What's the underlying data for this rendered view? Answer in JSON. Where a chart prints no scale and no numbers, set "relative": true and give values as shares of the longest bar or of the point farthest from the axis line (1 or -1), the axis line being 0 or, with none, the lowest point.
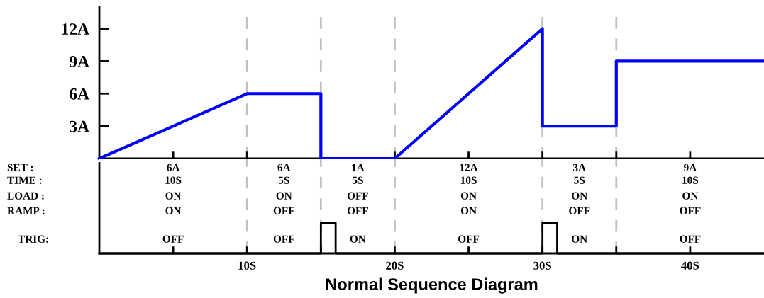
{
  "chart_data": [
    {
      "type": "line",
      "ylabel": null,
      "x": [
        0,
        10,
        15,
        15,
        20,
        30,
        30,
        35,
        35,
        45
      ],
      "series": [
        {
          "color": "#0000ff",
          "values": [
            0,
            6,
            6,
            0,
            0,
            12,
            3,
            3,
            9,
            9
          ]
        }
      ],
      "xlim": [
        0,
        45
      ],
      "ylim": [
        0,
        14
      ],
      "xticks": [
        {
          "value": 5,
          "label": null
        },
        {
          "value": 10,
          "label": null
        },
        {
          "value": 15,
          "label": null
        },
        {
          "value": 20,
          "label": null
        },
        {
          "value": 25,
          "label": null
        },
        {
          "value": 30,
          "label": null
        },
        {
          "value": 35,
          "label": null
        },
        {
          "value": 40,
          "label": null
        }
      ],
      "yticks": [
        {
          "value": 3,
          "label": "3A"
        },
        {
          "value": 6,
          "label": "6A"
        },
        {
          "value": 9,
          "label": "9A"
        },
        {
          "value": 12,
          "label": "12A"
        }
      ],
      "tick_labels": "y",
      "grid": false,
      "legend": false,
      "marker": "none",
      "line_style": "solid",
      "ref_lines": [
        {
          "axis": "x",
          "value": 10,
          "color": "#c0c0c0",
          "line_style": "dashed"
        },
        {
          "axis": "x",
          "value": 15,
          "color": "#c0c0c0",
          "line_style": "dashed"
        },
        {
          "axis": "x",
          "value": 20,
          "color": "#c0c0c0",
          "line_style": "dashed"
        },
        {
          "axis": "x",
          "value": 30,
          "color": "#c0c0c0",
          "line_style": "dashed"
        },
        {
          "axis": "x",
          "value": 35,
          "color": "#c0c0c0",
          "line_style": "dashed"
        }
      ]
    },
    {
      "type": "line",
      "relative": true,
      "xlabel": "Normal Sequence Diagram",
      "x": [
        0,
        15,
        15,
        16,
        16,
        30,
        30,
        31,
        31,
        45
      ],
      "series": [
        {
          "color": "#000000",
          "values": [
            0,
            0,
            1,
            1,
            0,
            0,
            1,
            1,
            0,
            0
          ]
        }
      ],
      "xlim": [
        0,
        45
      ],
      "xticks": [
        {
          "value": 5,
          "label": null
        },
        {
          "value": 10,
          "label": "10S"
        },
        {
          "value": 15,
          "label": null
        },
        {
          "value": 20,
          "label": "20S"
        },
        {
          "value": 25,
          "label": null
        },
        {
          "value": 30,
          "label": "30S"
        },
        {
          "value": 35,
          "label": null
        },
        {
          "value": 40,
          "label": "40S"
        }
      ],
      "tick_labels": "x",
      "grid": false,
      "legend": false,
      "marker": "none",
      "line_style": "solid",
      "ref_lines": [
        {
          "axis": "x",
          "value": 10,
          "color": "#c0c0c0",
          "line_style": "dashed"
        },
        {
          "axis": "x",
          "value": 15,
          "color": "#c0c0c0",
          "line_style": "dashed"
        },
        {
          "axis": "x",
          "value": 20,
          "color": "#c0c0c0",
          "line_style": "dashed"
        },
        {
          "axis": "x",
          "value": 30,
          "color": "#c0c0c0",
          "line_style": "dashed"
        },
        {
          "axis": "x",
          "value": 35,
          "color": "#c0c0c0",
          "line_style": "dashed"
        }
      ],
      "annotations": [
        "SET :",
        "TIME :",
        "LOAD :",
        "RAMP :",
        "TRIG:",
        "6A",
        "10S",
        "ON",
        "ON",
        "OFF",
        "6A",
        "5S",
        "ON",
        "OFF",
        "OFF",
        "1A",
        "5S",
        "OFF",
        "OFF",
        "ON",
        "12A",
        "10S",
        "ON",
        "ON",
        "OFF",
        "3A",
        "5S",
        "ON",
        "OFF",
        "ON",
        "9A",
        "10S",
        "ON",
        "OFF",
        "OFF"
      ]
    }
  ]
}
